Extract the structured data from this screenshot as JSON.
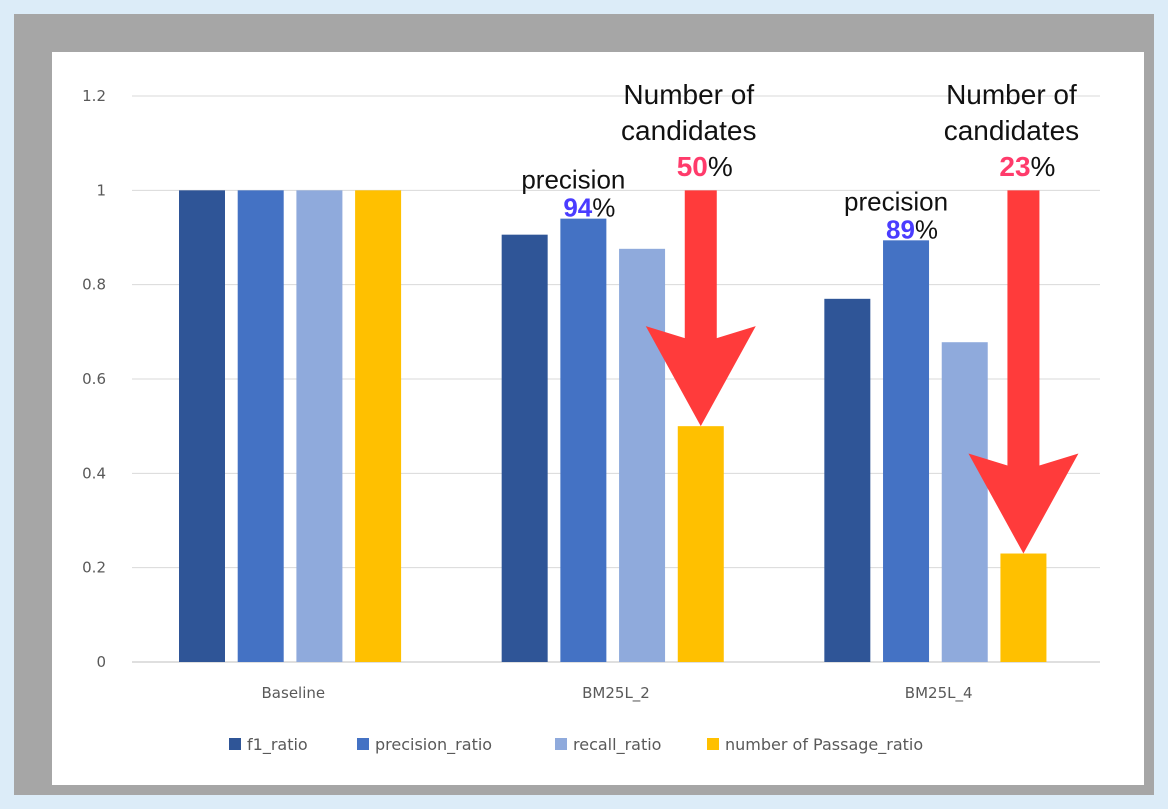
{
  "chart_data": {
    "type": "bar",
    "categories": [
      "Baseline",
      "BM25L_2",
      "BM25L_4"
    ],
    "series": [
      {
        "name": "f1_ratio",
        "values": [
          1.0,
          0.906,
          0.77
        ]
      },
      {
        "name": "precision_ratio",
        "values": [
          1.0,
          0.94,
          0.894
        ]
      },
      {
        "name": "recall_ratio",
        "values": [
          1.0,
          0.876,
          0.678
        ]
      },
      {
        "name": "number of Passage_ratio",
        "values": [
          1.0,
          0.5,
          0.23
        ]
      }
    ],
    "y_ticks": [
      "0",
      "0.2",
      "0.4",
      "0.6",
      "0.8",
      "1",
      "1.2"
    ],
    "ylim": [
      0,
      1.2
    ],
    "grid": true,
    "legend_position": "bottom",
    "colors": {
      "f1_ratio": "#2f5597",
      "precision_ratio": "#4472c4",
      "recall_ratio": "#8faadc",
      "passage_ratio": "#ffc000",
      "arrow": "#ff3b3b",
      "precision_pct": "#4a3cff",
      "candidates_pct": "#ff3b6b"
    },
    "annotations": [
      {
        "group": "BM25L_2",
        "precision_label": "precision",
        "precision_value": "94",
        "precision_suffix": "%",
        "candidates_line1": "Number of",
        "candidates_line2": "candidates",
        "candidates_value": "50",
        "candidates_suffix": "%",
        "arrow_from": 1.0,
        "arrow_to": 0.5
      },
      {
        "group": "BM25L_4",
        "precision_label": "precision",
        "precision_value": "89",
        "precision_suffix": "%",
        "candidates_line1": "Number of",
        "candidates_line2": "candidates",
        "candidates_value": "23",
        "candidates_suffix": "%",
        "arrow_from": 1.0,
        "arrow_to": 0.23
      }
    ]
  }
}
